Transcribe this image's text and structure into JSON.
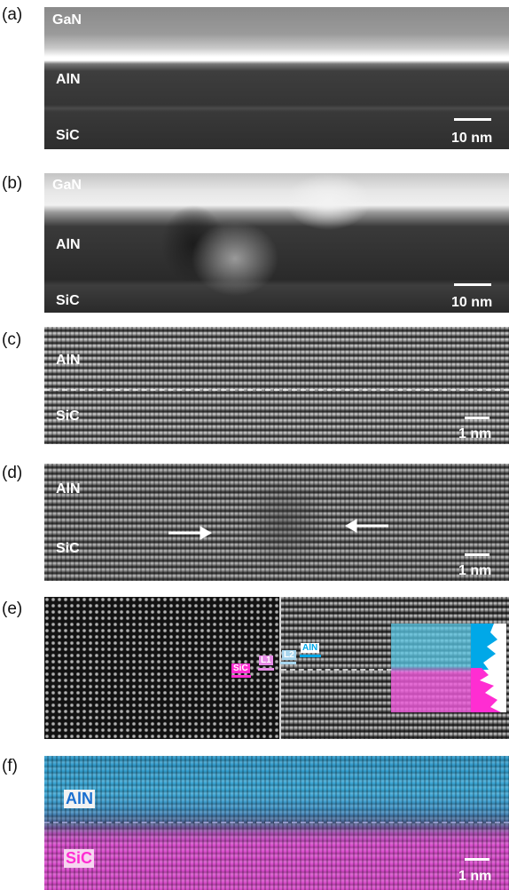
{
  "panels": [
    {
      "tag": "(a)",
      "layers": [
        "GaN",
        "AlN",
        "SiC"
      ],
      "scale": "10 nm"
    },
    {
      "tag": "(b)",
      "layers": [
        "GaN",
        "AlN",
        "SiC"
      ],
      "scale": "10 nm"
    },
    {
      "tag": "(c)",
      "layers": [
        "AlN",
        "SiC"
      ],
      "scale": "1 nm"
    },
    {
      "tag": "(d)",
      "layers": [
        "AlN",
        "SiC"
      ],
      "scale": "1 nm"
    },
    {
      "tag": "(e)",
      "markers": [
        "SiC",
        "L1",
        "L2",
        "AlN"
      ]
    },
    {
      "tag": "(f)",
      "layers": [
        "AlN",
        "SiC"
      ],
      "scale": "1 nm"
    }
  ],
  "colors": {
    "aln": "#00a8e8",
    "sic": "#ff2dd2",
    "l1": "#e58be6",
    "l2": "#a8d6ee"
  }
}
